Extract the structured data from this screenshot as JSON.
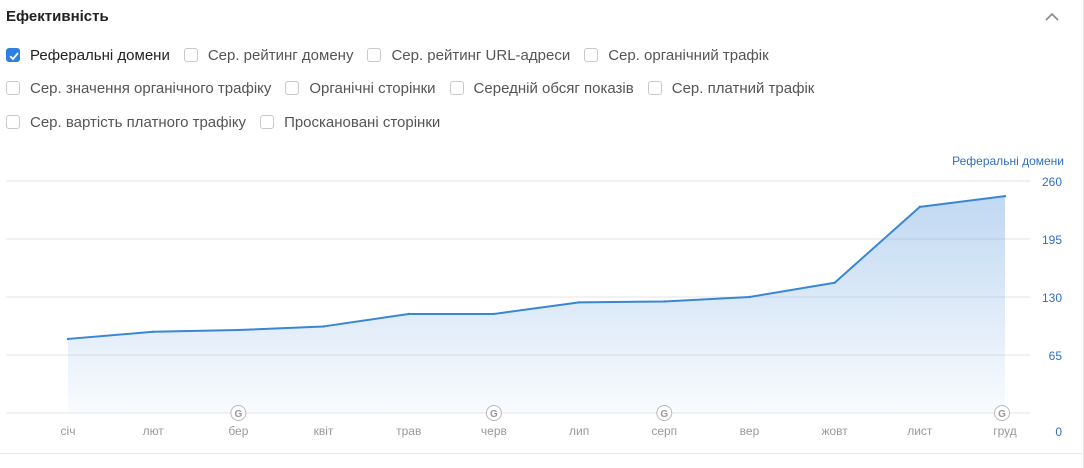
{
  "panel": {
    "title": "Ефективність",
    "collapse_icon": "chevron-up-icon"
  },
  "filters": [
    {
      "label": "Реферальні домени",
      "checked": true
    },
    {
      "label": "Сер. рейтинг домену",
      "checked": false
    },
    {
      "label": "Сер. рейтинг URL-адреси",
      "checked": false
    },
    {
      "label": "Сер. органічний трафік",
      "checked": false
    },
    {
      "label": "Сер. значення органічного трафіку",
      "checked": false
    },
    {
      "label": "Органічні сторінки",
      "checked": false
    },
    {
      "label": "Середній обсяг показів",
      "checked": false
    },
    {
      "label": "Сер. платний трафік",
      "checked": false
    },
    {
      "label": "Сер. вартість платного трафіку",
      "checked": false
    },
    {
      "label": "Проскановані сторінки",
      "checked": false
    }
  ],
  "colors": {
    "accent": "#2f7fe0",
    "line": "#3a86d6",
    "axis_text": "#2f6fc0",
    "month_text": "#999999",
    "grid": "#e6e6e6"
  },
  "chart_data": {
    "type": "area",
    "series": [
      {
        "name": "Реферальні домени",
        "values": [
          83,
          91,
          93,
          97,
          111,
          111,
          124,
          125,
          130,
          146,
          231,
          243
        ]
      }
    ],
    "categories": [
      "січ",
      "лют",
      "бер",
      "квіт",
      "трав",
      "черв",
      "лип",
      "серп",
      "вер",
      "жовт",
      "лист",
      "груд"
    ],
    "yaxis_title": "Реферальні домени",
    "yticks": [
      0,
      65,
      130,
      195,
      260
    ],
    "ylim": [
      0,
      260
    ],
    "y_axis_side": "right",
    "google_update_markers": [
      "бер",
      "черв",
      "серп",
      "груд"
    ],
    "marker_label": "G",
    "grid": true
  }
}
